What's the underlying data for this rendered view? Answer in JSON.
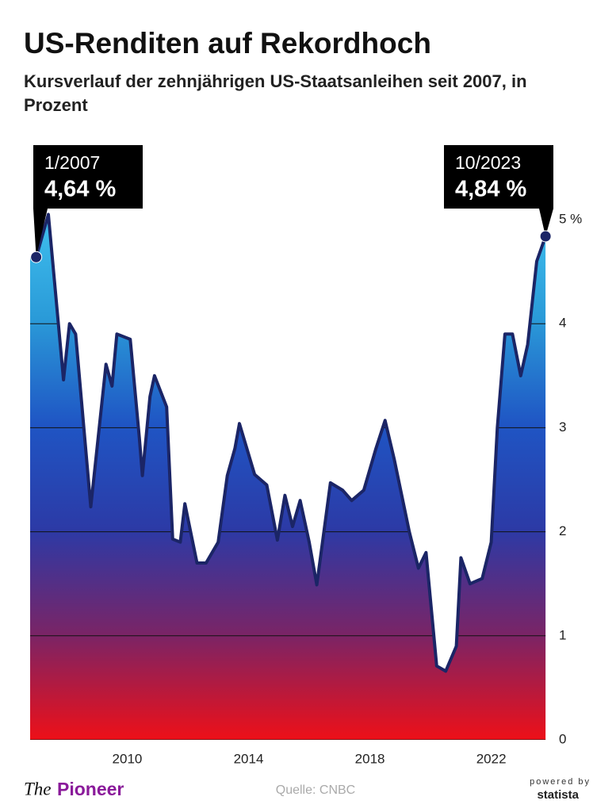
{
  "chart_data": {
    "type": "area",
    "title": "US-Renditen auf Rekordhoch",
    "subtitle": "Kursverlauf der zehnjährigen US-Staatsanleihen seit 2007, in Prozent",
    "x": [
      2007.0,
      2007.4,
      2007.9,
      2008.1,
      2008.3,
      2008.8,
      2009.3,
      2009.5,
      2009.66,
      2010.1,
      2010.4,
      2010.5,
      2010.75,
      2010.9,
      2011.3,
      2011.5,
      2011.75,
      2011.9,
      2012.3,
      2012.6,
      2013.0,
      2013.3,
      2013.55,
      2013.7,
      2014.2,
      2014.6,
      2014.95,
      2015.2,
      2015.45,
      2015.7,
      2016.0,
      2016.25,
      2016.7,
      2017.1,
      2017.4,
      2017.8,
      2018.2,
      2018.5,
      2018.8,
      2019.3,
      2019.6,
      2019.85,
      2020.2,
      2020.5,
      2020.85,
      2021.0,
      2021.3,
      2021.7,
      2022.0,
      2022.2,
      2022.45,
      2022.7,
      2022.97,
      2023.2,
      2023.5,
      2023.79
    ],
    "values": [
      4.64,
      5.05,
      3.46,
      4.0,
      3.9,
      2.24,
      3.61,
      3.4,
      3.9,
      3.85,
      2.9,
      2.54,
      3.3,
      3.5,
      3.2,
      1.93,
      1.9,
      2.27,
      1.7,
      1.7,
      1.9,
      2.54,
      2.8,
      3.04,
      2.55,
      2.45,
      1.92,
      2.35,
      2.05,
      2.3,
      1.9,
      1.49,
      2.47,
      2.4,
      2.3,
      2.4,
      2.8,
      3.07,
      2.7,
      2.0,
      1.65,
      1.8,
      0.71,
      0.66,
      0.9,
      1.75,
      1.5,
      1.55,
      1.9,
      3.0,
      3.9,
      3.9,
      3.5,
      3.8,
      4.6,
      4.84
    ],
    "value_labels": [
      "4,64 %",
      null,
      null,
      null,
      null,
      null,
      null,
      null,
      null,
      null,
      null,
      null,
      null,
      null,
      null,
      null,
      null,
      null,
      null,
      null,
      null,
      null,
      null,
      null,
      null,
      null,
      null,
      null,
      null,
      null,
      null,
      null,
      null,
      null,
      null,
      null,
      null,
      null,
      null,
      null,
      null,
      null,
      null,
      null,
      null,
      null,
      null,
      null,
      null,
      null,
      null,
      null,
      null,
      null,
      null,
      "4,84 %"
    ],
    "annotations": [
      "1/2007",
      "10/2023"
    ],
    "xlim": [
      2006.8,
      2024.1
    ],
    "xticks": [
      2010,
      2014,
      2018,
      2022
    ],
    "ylim": [
      0,
      5.5
    ],
    "yticks": [
      0,
      1,
      2,
      3,
      4,
      {
        "value": 5,
        "label": "5 %"
      }
    ],
    "grid": true,
    "line_color": "#1b2566",
    "gradient": [
      "#ee1018",
      "#7a2466",
      "#2c3aa6",
      "#1f55c4",
      "#2a9ad8",
      "#3fc0ee"
    ],
    "source": "Quelle: CNBC",
    "brand": {
      "the": "The",
      "name": "Pioneer"
    },
    "powered": {
      "by": "powered by",
      "name": "statista"
    }
  }
}
